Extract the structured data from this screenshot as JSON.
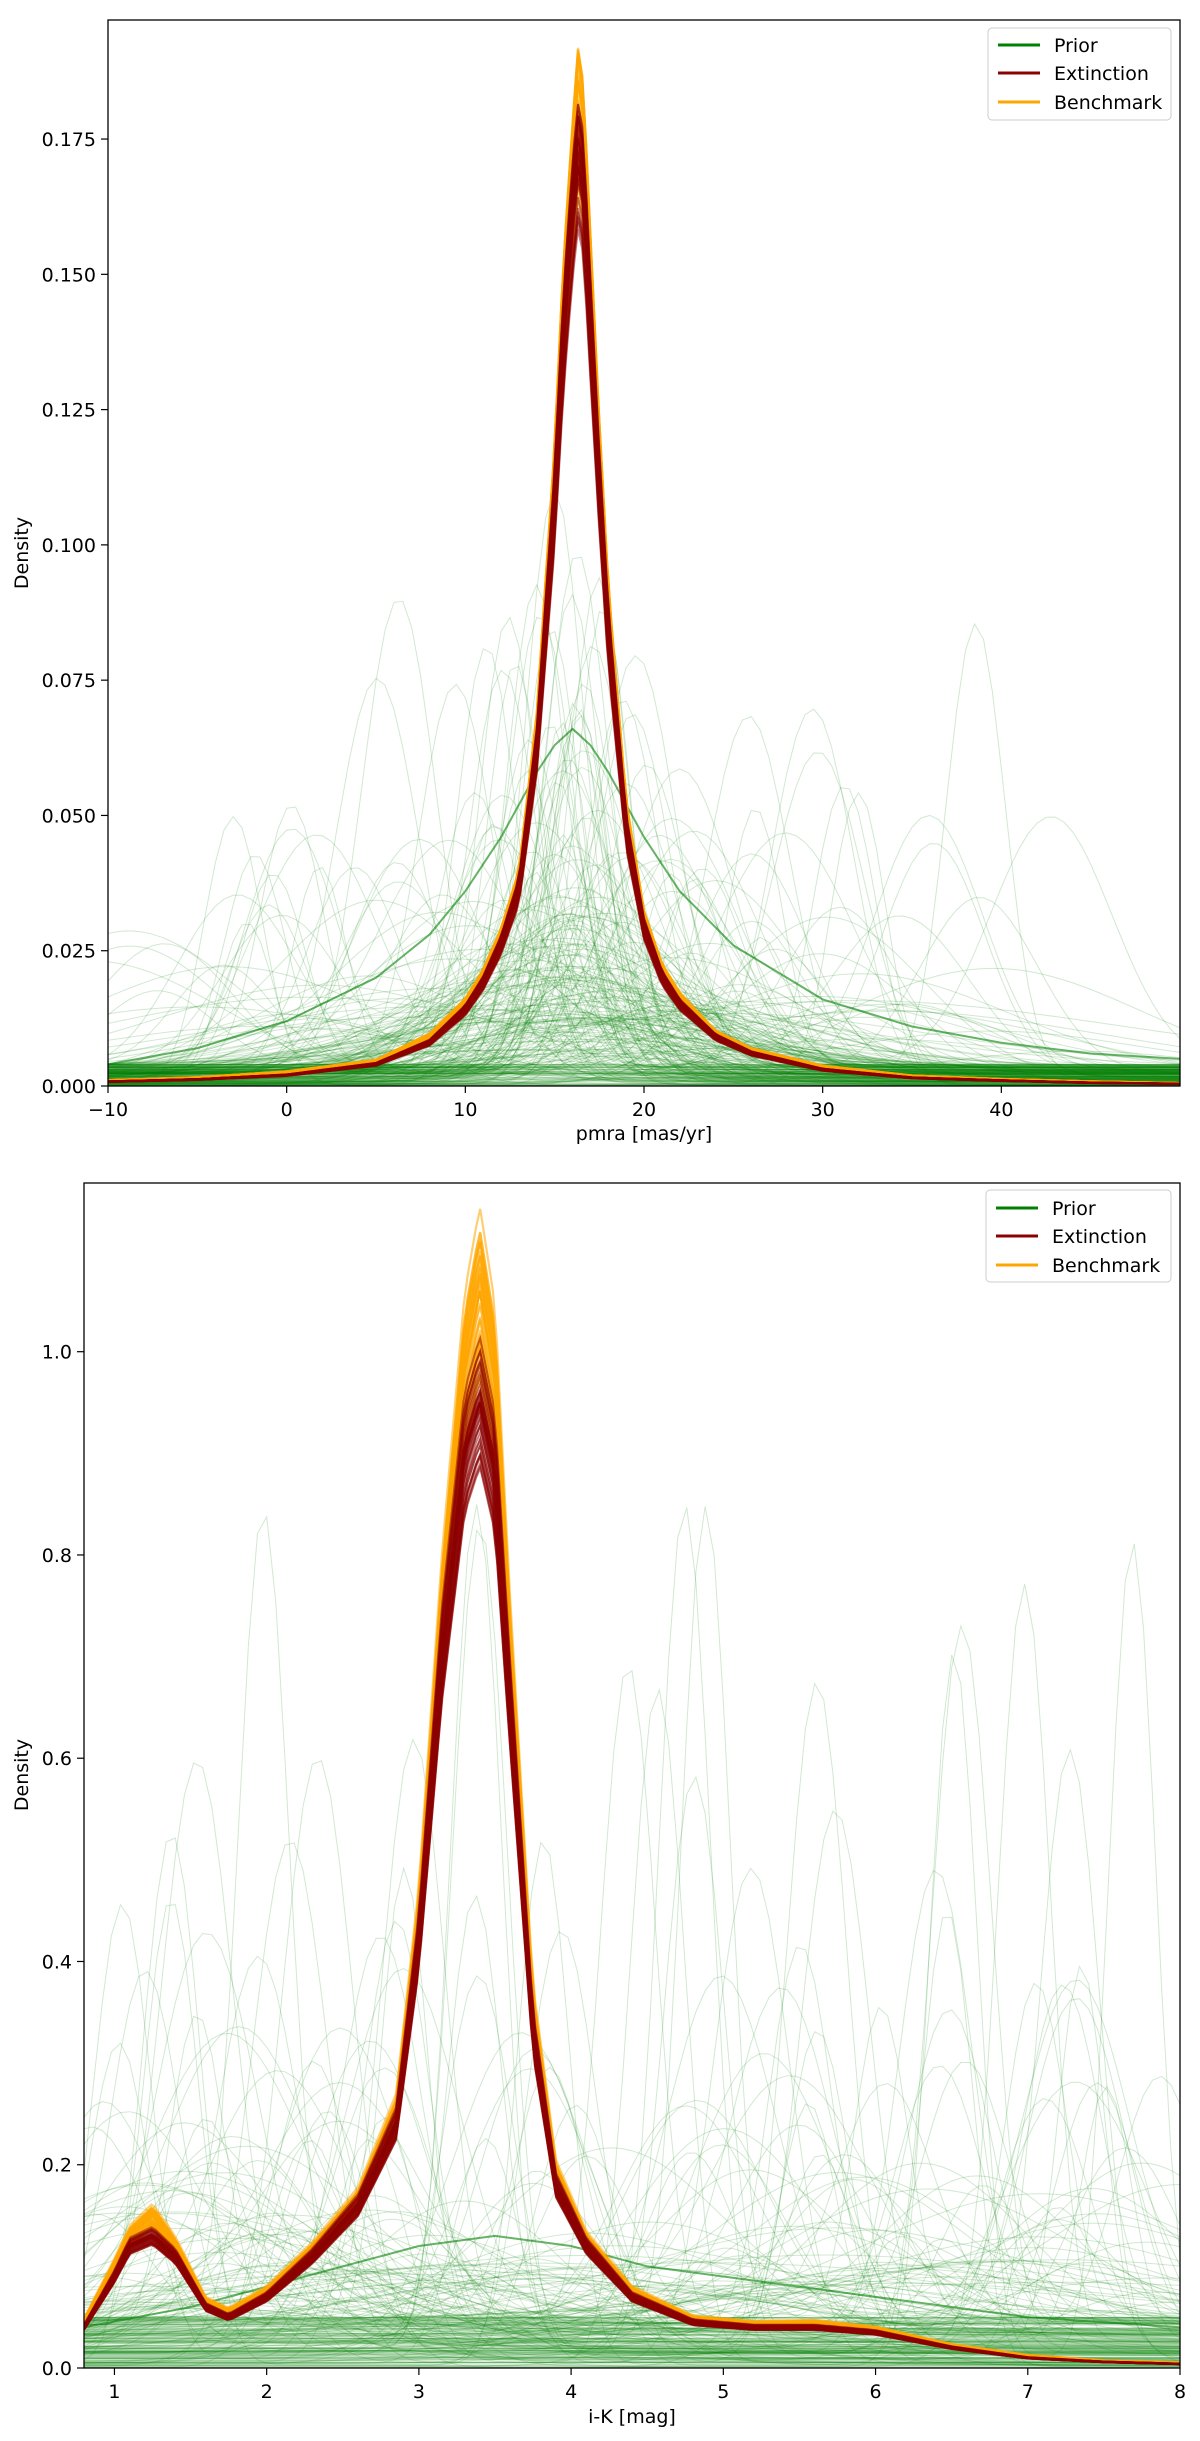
{
  "chart_data": [
    {
      "type": "line",
      "xlabel": "pmra [mas/yr]",
      "ylabel": "Density",
      "xlim": [
        -10,
        50
      ],
      "ylim": [
        0,
        0.197
      ],
      "xticks": [
        -10,
        0,
        10,
        20,
        30,
        40
      ],
      "xtick_labels": [
        "−10",
        "0",
        "10",
        "20",
        "30",
        "40"
      ],
      "yticks": [
        0,
        0.025,
        0.05,
        0.075,
        0.1,
        0.125,
        0.15,
        0.175
      ],
      "ytick_labels": [
        "0.000",
        "0.025",
        "0.050",
        "0.075",
        "0.100",
        "0.125",
        "0.150",
        "0.175"
      ],
      "grid": false,
      "legend": {
        "position": "top-right",
        "entries": [
          "Prior",
          "Extinction",
          "Benchmark"
        ]
      },
      "colors": {
        "Prior": "#008000",
        "Extinction": "#8b0000",
        "Benchmark": "#ffa500"
      },
      "series": [
        {
          "name": "Prior",
          "note_lines": 300,
          "x": [
            -10,
            -5,
            0,
            5,
            8,
            10,
            12,
            14,
            15,
            16,
            17,
            18,
            20,
            22,
            25,
            30,
            35,
            40,
            45,
            50
          ],
          "values": [
            0.004,
            0.007,
            0.012,
            0.02,
            0.028,
            0.036,
            0.046,
            0.058,
            0.063,
            0.066,
            0.063,
            0.058,
            0.046,
            0.036,
            0.026,
            0.016,
            0.011,
            0.008,
            0.006,
            0.005
          ]
        },
        {
          "name": "Extinction",
          "x": [
            -10,
            -5,
            0,
            5,
            8,
            10,
            11,
            12,
            13,
            14,
            15,
            15.5,
            16,
            16.3,
            16.6,
            17,
            17.5,
            18,
            19,
            20,
            21,
            22,
            24,
            26,
            30,
            35,
            40,
            45,
            50
          ],
          "values": [
            0.0008,
            0.0012,
            0.002,
            0.004,
            0.008,
            0.014,
            0.019,
            0.026,
            0.036,
            0.062,
            0.107,
            0.138,
            0.16,
            0.17,
            0.165,
            0.14,
            0.11,
            0.083,
            0.047,
            0.029,
            0.02,
            0.015,
            0.009,
            0.006,
            0.003,
            0.0015,
            0.001,
            0.0006,
            0.0004
          ]
        },
        {
          "name": "Benchmark",
          "x": [
            -10,
            -5,
            0,
            5,
            8,
            10,
            11,
            12,
            13,
            14,
            15,
            15.5,
            16,
            16.3,
            16.6,
            17,
            17.5,
            18,
            19,
            20,
            21,
            22,
            24,
            26,
            30,
            35,
            40,
            45,
            50
          ],
          "values": [
            0.001,
            0.0015,
            0.0025,
            0.0045,
            0.009,
            0.015,
            0.02,
            0.027,
            0.037,
            0.064,
            0.11,
            0.142,
            0.165,
            0.178,
            0.172,
            0.146,
            0.114,
            0.086,
            0.049,
            0.03,
            0.021,
            0.016,
            0.0095,
            0.0065,
            0.0035,
            0.0018,
            0.0012,
            0.0008,
            0.0005
          ]
        }
      ]
    },
    {
      "type": "line",
      "xlabel": "i-K [mag]",
      "ylabel": "Density",
      "xlim": [
        0.8,
        8
      ],
      "ylim": [
        0,
        1.166
      ],
      "xticks": [
        1,
        2,
        3,
        4,
        5,
        6,
        7,
        8
      ],
      "xtick_labels": [
        "1",
        "2",
        "3",
        "4",
        "5",
        "6",
        "7",
        "8"
      ],
      "yticks": [
        0,
        0.2,
        0.4,
        0.6,
        0.8,
        1.0
      ],
      "ytick_labels": [
        "0.0",
        "0.2",
        "0.4",
        "0.6",
        "0.8",
        "1.0"
      ],
      "grid": false,
      "legend": {
        "position": "top-right",
        "entries": [
          "Prior",
          "Extinction",
          "Benchmark"
        ]
      },
      "colors": {
        "Prior": "#008000",
        "Extinction": "#8b0000",
        "Benchmark": "#ffa500"
      },
      "series": [
        {
          "name": "Prior",
          "x": [
            0.8,
            1.5,
            2,
            2.5,
            3,
            3.5,
            4,
            4.5,
            5,
            5.5,
            6,
            6.5,
            7,
            7.5,
            8
          ],
          "values": [
            0.04,
            0.06,
            0.08,
            0.1,
            0.12,
            0.13,
            0.12,
            0.1,
            0.09,
            0.08,
            0.07,
            0.06,
            0.05,
            0.045,
            0.04
          ]
        },
        {
          "name": "Extinction",
          "x": [
            0.8,
            1.0,
            1.1,
            1.25,
            1.4,
            1.6,
            1.75,
            2.0,
            2.3,
            2.6,
            2.85,
            3.0,
            3.15,
            3.3,
            3.4,
            3.5,
            3.6,
            3.75,
            3.9,
            4.1,
            4.4,
            4.8,
            5.2,
            5.6,
            6.0,
            6.5,
            7.0,
            7.5,
            8.0
          ],
          "values": [
            0.04,
            0.09,
            0.12,
            0.13,
            0.11,
            0.06,
            0.05,
            0.07,
            0.11,
            0.16,
            0.24,
            0.42,
            0.7,
            0.9,
            0.95,
            0.88,
            0.65,
            0.33,
            0.18,
            0.12,
            0.07,
            0.045,
            0.04,
            0.04,
            0.035,
            0.02,
            0.01,
            0.006,
            0.004
          ]
        },
        {
          "name": "Benchmark",
          "x": [
            0.8,
            1.0,
            1.1,
            1.25,
            1.4,
            1.6,
            1.75,
            2.0,
            2.3,
            2.6,
            2.85,
            3.0,
            3.15,
            3.3,
            3.4,
            3.5,
            3.6,
            3.75,
            3.9,
            4.1,
            4.4,
            4.8,
            5.2,
            5.6,
            6.0,
            6.5,
            7.0,
            7.5,
            8.0
          ],
          "values": [
            0.045,
            0.1,
            0.13,
            0.15,
            0.12,
            0.065,
            0.055,
            0.075,
            0.115,
            0.165,
            0.25,
            0.44,
            0.74,
            0.98,
            1.06,
            0.97,
            0.7,
            0.35,
            0.19,
            0.125,
            0.075,
            0.048,
            0.043,
            0.044,
            0.038,
            0.022,
            0.012,
            0.007,
            0.005
          ]
        }
      ]
    }
  ]
}
